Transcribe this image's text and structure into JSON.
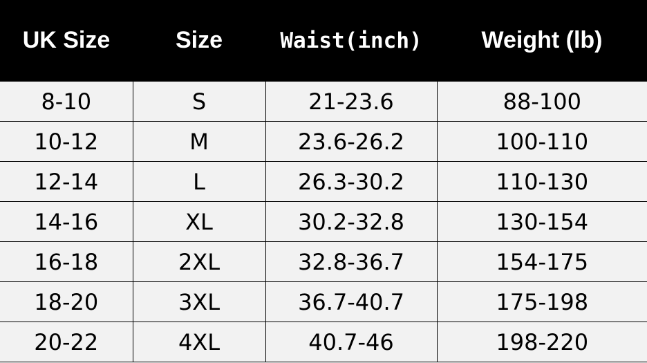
{
  "table": {
    "headers": [
      "UK Size",
      "Size",
      "Waist(inch)",
      "Weight (lb)"
    ],
    "rows": [
      [
        "8-10",
        "S",
        "21-23.6",
        "88-100"
      ],
      [
        "10-12",
        "M",
        "23.6-26.2",
        "100-110"
      ],
      [
        "12-14",
        "L",
        "26.3-30.2",
        "110-130"
      ],
      [
        "14-16",
        "XL",
        "30.2-32.8",
        "130-154"
      ],
      [
        "16-18",
        "2XL",
        "32.8-36.7",
        "154-175"
      ],
      [
        "18-20",
        "3XL",
        "36.7-40.7",
        "175-198"
      ],
      [
        "20-22",
        "4XL",
        "40.7-46",
        "198-220"
      ]
    ]
  },
  "colors": {
    "header_bg": "#000000",
    "header_text": "#ffffff",
    "cell_bg": "#f2f2f2"
  }
}
